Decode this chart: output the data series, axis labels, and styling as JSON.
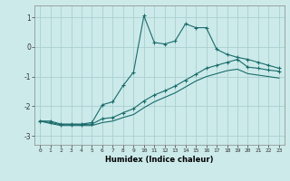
{
  "bg_color": "#cceaea",
  "grid_color": "#aacfcf",
  "line_color": "#1a6b6b",
  "xlabel": "Humidex (Indice chaleur)",
  "xlim": [
    -0.5,
    23.5
  ],
  "ylim": [
    -3.3,
    1.4
  ],
  "yticks": [
    -3,
    -2,
    -1,
    0,
    1
  ],
  "xticks": [
    0,
    1,
    2,
    3,
    4,
    5,
    6,
    7,
    8,
    9,
    10,
    11,
    12,
    13,
    14,
    15,
    16,
    17,
    18,
    19,
    20,
    21,
    22,
    23
  ],
  "line1_x": [
    0,
    1,
    2,
    3,
    4,
    5,
    6,
    7,
    8,
    9,
    10,
    11,
    12,
    13,
    14,
    15,
    16,
    17,
    18,
    19,
    20,
    21,
    22,
    23
  ],
  "line1_y": [
    -2.5,
    -2.5,
    -2.6,
    -2.6,
    -2.6,
    -2.55,
    -1.95,
    -1.85,
    -1.3,
    -0.85,
    1.05,
    0.15,
    0.1,
    0.2,
    0.78,
    0.65,
    0.65,
    -0.08,
    -0.25,
    -0.35,
    -0.42,
    -0.52,
    -0.62,
    -0.72
  ],
  "line2_x": [
    0,
    1,
    2,
    3,
    4,
    5,
    6,
    7,
    8,
    9,
    10,
    11,
    12,
    13,
    14,
    15,
    16,
    17,
    18,
    19,
    20,
    21,
    22,
    23
  ],
  "line2_y": [
    -2.5,
    -2.55,
    -2.62,
    -2.62,
    -2.62,
    -2.6,
    -2.42,
    -2.38,
    -2.22,
    -2.08,
    -1.82,
    -1.62,
    -1.48,
    -1.32,
    -1.12,
    -0.92,
    -0.72,
    -0.62,
    -0.52,
    -0.42,
    -0.68,
    -0.72,
    -0.78,
    -0.82
  ],
  "line3_x": [
    0,
    1,
    2,
    3,
    4,
    5,
    6,
    7,
    8,
    9,
    10,
    11,
    12,
    13,
    14,
    15,
    16,
    17,
    18,
    19,
    20,
    21,
    22,
    23
  ],
  "line3_y": [
    -2.5,
    -2.58,
    -2.65,
    -2.65,
    -2.65,
    -2.65,
    -2.55,
    -2.5,
    -2.38,
    -2.28,
    -2.05,
    -1.85,
    -1.7,
    -1.55,
    -1.35,
    -1.15,
    -1.0,
    -0.9,
    -0.8,
    -0.75,
    -0.9,
    -0.95,
    -1.0,
    -1.05
  ]
}
